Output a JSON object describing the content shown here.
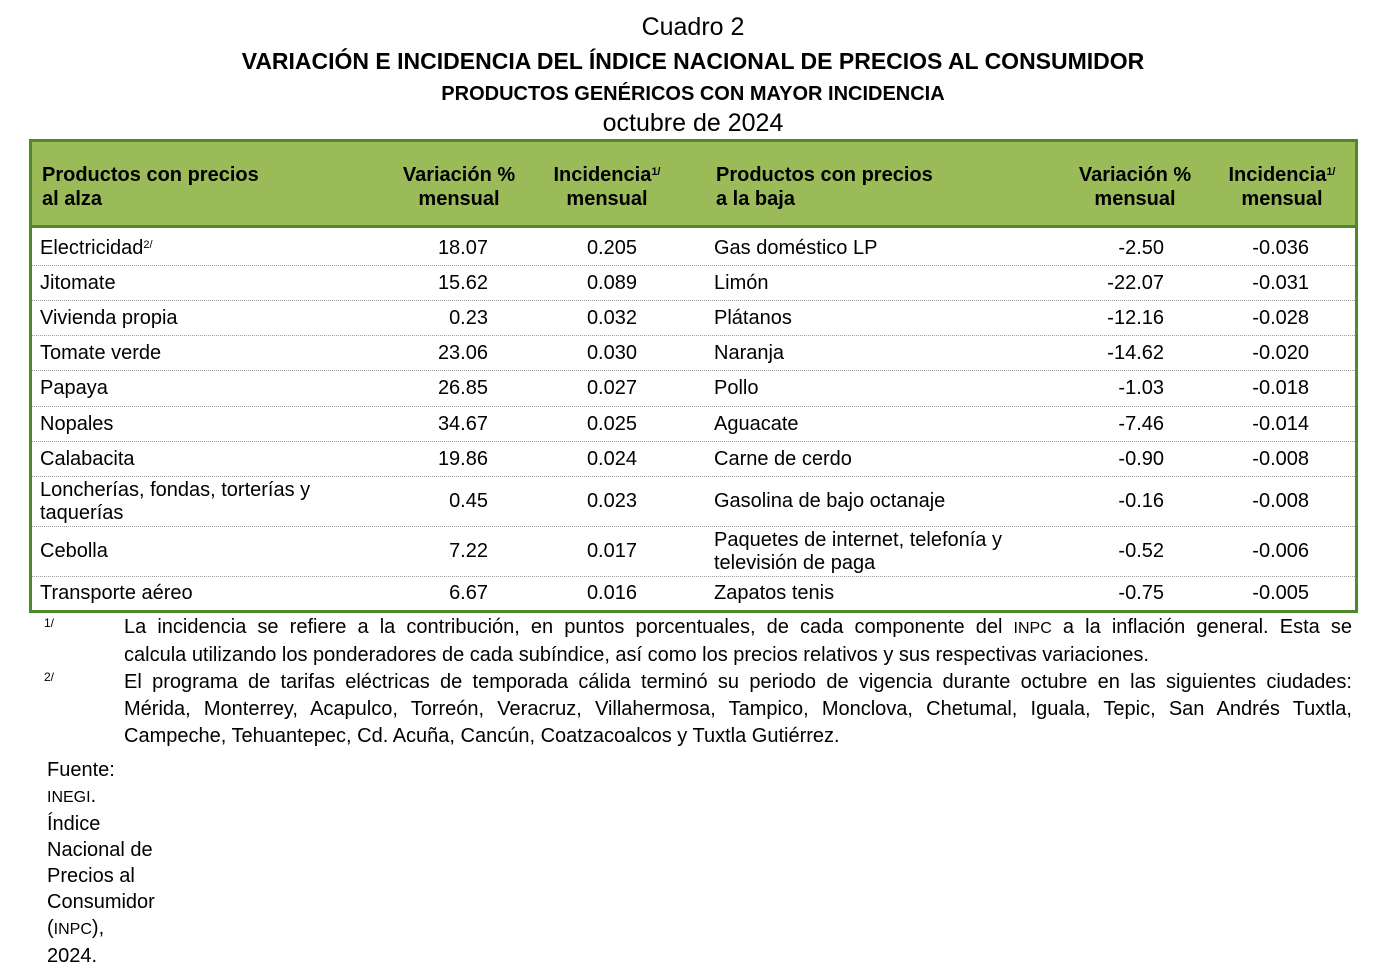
{
  "title": {
    "line1": "Cuadro 2",
    "line2": "VARIACIÓN E INCIDENCIA DEL ÍNDICE NACIONAL DE PRECIOS AL CONSUMIDOR",
    "line3": "PRODUCTOS GENÉRICOS CON MAYOR INCIDENCIA",
    "line4": "octubre de 2024"
  },
  "header": {
    "up_products_l1": "Productos con precios",
    "up_products_l2": "al alza",
    "var_l1": "Variación %",
    "var_l2": "mensual",
    "inc_l1": "Incidencia",
    "inc_sup": "1/",
    "inc_l2": "mensual",
    "down_products_l1": "Productos con precios",
    "down_products_l2": "a la baja"
  },
  "rows": [
    {
      "up": "Electricidad",
      "up_sup": "2/",
      "up_var": "18.07",
      "up_inc": "0.205",
      "down": "Gas doméstico LP",
      "down_var": "-2.50",
      "down_inc": "-0.036"
    },
    {
      "up": "Jitomate",
      "up_var": "15.62",
      "up_inc": "0.089",
      "down": "Limón",
      "down_var": "-22.07",
      "down_inc": "-0.031"
    },
    {
      "up": "Vivienda propia",
      "up_var": "0.23",
      "up_inc": "0.032",
      "down": "Plátanos",
      "down_var": "-12.16",
      "down_inc": "-0.028"
    },
    {
      "up": "Tomate verde",
      "up_var": "23.06",
      "up_inc": "0.030",
      "down": "Naranja",
      "down_var": "-14.62",
      "down_inc": "-0.020"
    },
    {
      "up": "Papaya",
      "up_var": "26.85",
      "up_inc": "0.027",
      "down": "Pollo",
      "down_var": "-1.03",
      "down_inc": "-0.018"
    },
    {
      "up": "Nopales",
      "up_var": "34.67",
      "up_inc": "0.025",
      "down": "Aguacate",
      "down_var": "-7.46",
      "down_inc": "-0.014"
    },
    {
      "up": "Calabacita",
      "up_var": "19.86",
      "up_inc": "0.024",
      "down": "Carne de cerdo",
      "down_var": "-0.90",
      "down_inc": "-0.008"
    },
    {
      "up_l1": "Loncherías, fondas, torterías y",
      "up_l2": "taquerías",
      "up_var": "0.45",
      "up_inc": "0.023",
      "down": "Gasolina de bajo octanaje",
      "down_var": "-0.16",
      "down_inc": "-0.008"
    },
    {
      "up": "Cebolla",
      "up_var": "7.22",
      "up_inc": "0.017",
      "down_l1": "Paquetes de internet, telefonía y",
      "down_l2": "televisión de paga",
      "down_var": "-0.52",
      "down_inc": "-0.006"
    },
    {
      "up": "Transporte aéreo",
      "up_var": "6.67",
      "up_inc": "0.016",
      "down": "Zapatos tenis",
      "down_var": "-0.75",
      "down_inc": "-0.005"
    }
  ],
  "footnotes": {
    "fn1_mark": "1/",
    "fn1_l1_a": "La incidencia se refiere a la contribución, en puntos porcentuales, de cada componente del",
    "fn1_l1_abbr": "INPC",
    "fn1_l1_b": "a la inflación general. Esta se",
    "fn1_l2": "calcula utilizando los ponderadores de cada subíndice, así como los precios relativos y sus respectivas variaciones.",
    "fn2_mark": "2/",
    "fn2_l1": "El programa de tarifas eléctricas de temporada cálida terminó su periodo de vigencia durante octubre en las siguientes ciudades:",
    "fn2_l2": "Mérida, Monterrey, Acapulco, Torreón, Veracruz, Villahermosa, Tampico, Monclova, Chetumal, Iguala, Tepic, San Andrés Tuxtla,",
    "fn2_l3": "Campeche, Tehuantepec, Cd. Acuña, Cancún, Coatzacoalcos y Tuxtla Gutiérrez."
  },
  "source": {
    "label": "Fuente:",
    "org": "INEGI",
    "text_a": ". Índice Nacional de Precios al Consumidor (",
    "abbr": "INPC",
    "text_b": "), 2024."
  },
  "colors": {
    "header_bg": "#9bbb59",
    "border": "#4e8a2a"
  }
}
